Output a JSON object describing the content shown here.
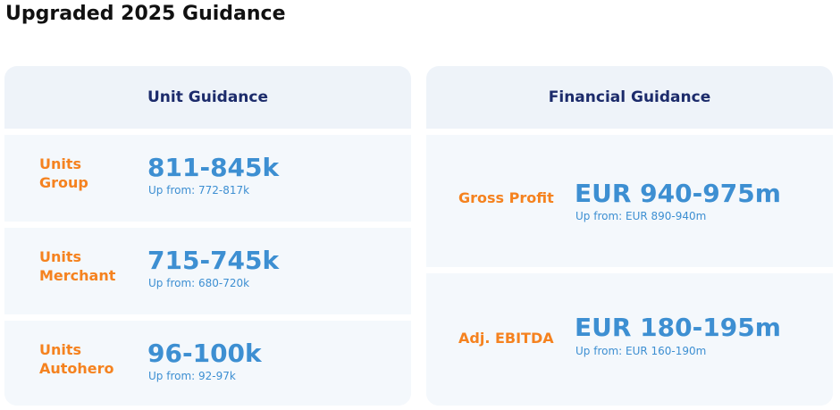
{
  "title": "Upgraded 2025 Guidance",
  "unit_guidance": {
    "header": "Unit Guidance",
    "rows": [
      {
        "label_line1": "Units",
        "label_line2": "Group",
        "value": "811-845k",
        "sub": "Up from: 772-817k"
      },
      {
        "label_line1": "Units",
        "label_line2": "Merchant",
        "value": "715-745k",
        "sub": "Up from: 680-720k"
      },
      {
        "label_line1": "Units",
        "label_line2": "Autohero",
        "value": "96-100k",
        "sub": "Up from: 92-97k"
      }
    ]
  },
  "financial_guidance": {
    "header": "Financial Guidance",
    "rows": [
      {
        "label": "Gross Profit",
        "value": "EUR 940-975m",
        "sub": "Up from: EUR 890-940m"
      },
      {
        "label": "Adj. EBITDA",
        "value": "EUR 180-195m",
        "sub": "Up from: EUR 160-190m"
      }
    ]
  },
  "colors": {
    "title": "#111111",
    "header": "#1c2b6b",
    "label": "#f5821f",
    "value": "#3d8fd2",
    "panel": "#eef3f9"
  }
}
